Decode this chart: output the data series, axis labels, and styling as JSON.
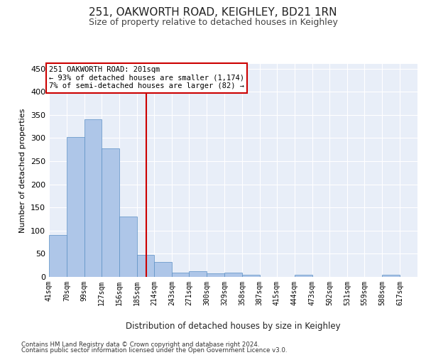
{
  "title1": "251, OAKWORTH ROAD, KEIGHLEY, BD21 1RN",
  "title2": "Size of property relative to detached houses in Keighley",
  "xlabel": "Distribution of detached houses by size in Keighley",
  "ylabel": "Number of detached properties",
  "property_size": 201,
  "annotation_line1": "251 OAKWORTH ROAD: 201sqm",
  "annotation_line2": "← 93% of detached houses are smaller (1,174)",
  "annotation_line3": "7% of semi-detached houses are larger (82) →",
  "footer1": "Contains HM Land Registry data © Crown copyright and database right 2024.",
  "footer2": "Contains public sector information licensed under the Open Government Licence v3.0.",
  "bin_labels": [
    "41sqm",
    "70sqm",
    "99sqm",
    "127sqm",
    "156sqm",
    "185sqm",
    "214sqm",
    "243sqm",
    "271sqm",
    "300sqm",
    "329sqm",
    "358sqm",
    "387sqm",
    "415sqm",
    "444sqm",
    "473sqm",
    "502sqm",
    "531sqm",
    "559sqm",
    "588sqm",
    "617sqm"
  ],
  "bin_edges": [
    41,
    70,
    99,
    127,
    156,
    185,
    214,
    243,
    271,
    300,
    329,
    358,
    387,
    415,
    444,
    473,
    502,
    531,
    559,
    588,
    617,
    646
  ],
  "bar_values": [
    90,
    302,
    340,
    277,
    131,
    47,
    32,
    9,
    12,
    7,
    9,
    5,
    0,
    0,
    4,
    0,
    0,
    0,
    0,
    5,
    0
  ],
  "bar_color": "#aec6e8",
  "bar_edge_color": "#5a8fc4",
  "vline_x": 201,
  "vline_color": "#cc0000",
  "background_color": "#e8eef8",
  "grid_color": "#ffffff",
  "annotation_box_color": "#ffffff",
  "annotation_box_edge": "#cc0000",
  "ylim": [
    0,
    460
  ],
  "yticks": [
    0,
    50,
    100,
    150,
    200,
    250,
    300,
    350,
    400,
    450
  ]
}
